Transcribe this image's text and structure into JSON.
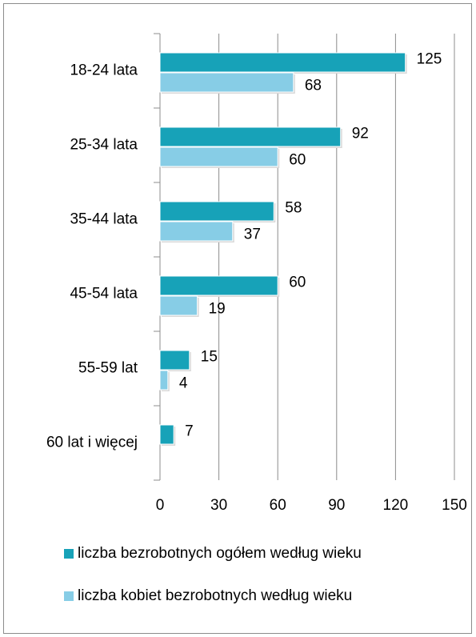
{
  "chart_data": {
    "type": "bar",
    "orientation": "horizontal",
    "categories": [
      "18-24 lata",
      "25-34 lata",
      "35-44 lata",
      "45-54 lata",
      "55-59 lat",
      "60 lat i więcej"
    ],
    "series": [
      {
        "name": "liczba bezrobotnych ogółem według wieku",
        "color": "#17a2b8",
        "values": [
          125,
          92,
          58,
          60,
          15,
          7
        ]
      },
      {
        "name": "liczba kobiet bezrobotnych według wieku",
        "color": "#87cde6",
        "values": [
          68,
          60,
          37,
          19,
          4,
          null
        ]
      }
    ],
    "xlim": [
      0,
      150
    ],
    "xticks": [
      0,
      30,
      60,
      90,
      120,
      150
    ],
    "grid": true,
    "legend": "bottom"
  }
}
